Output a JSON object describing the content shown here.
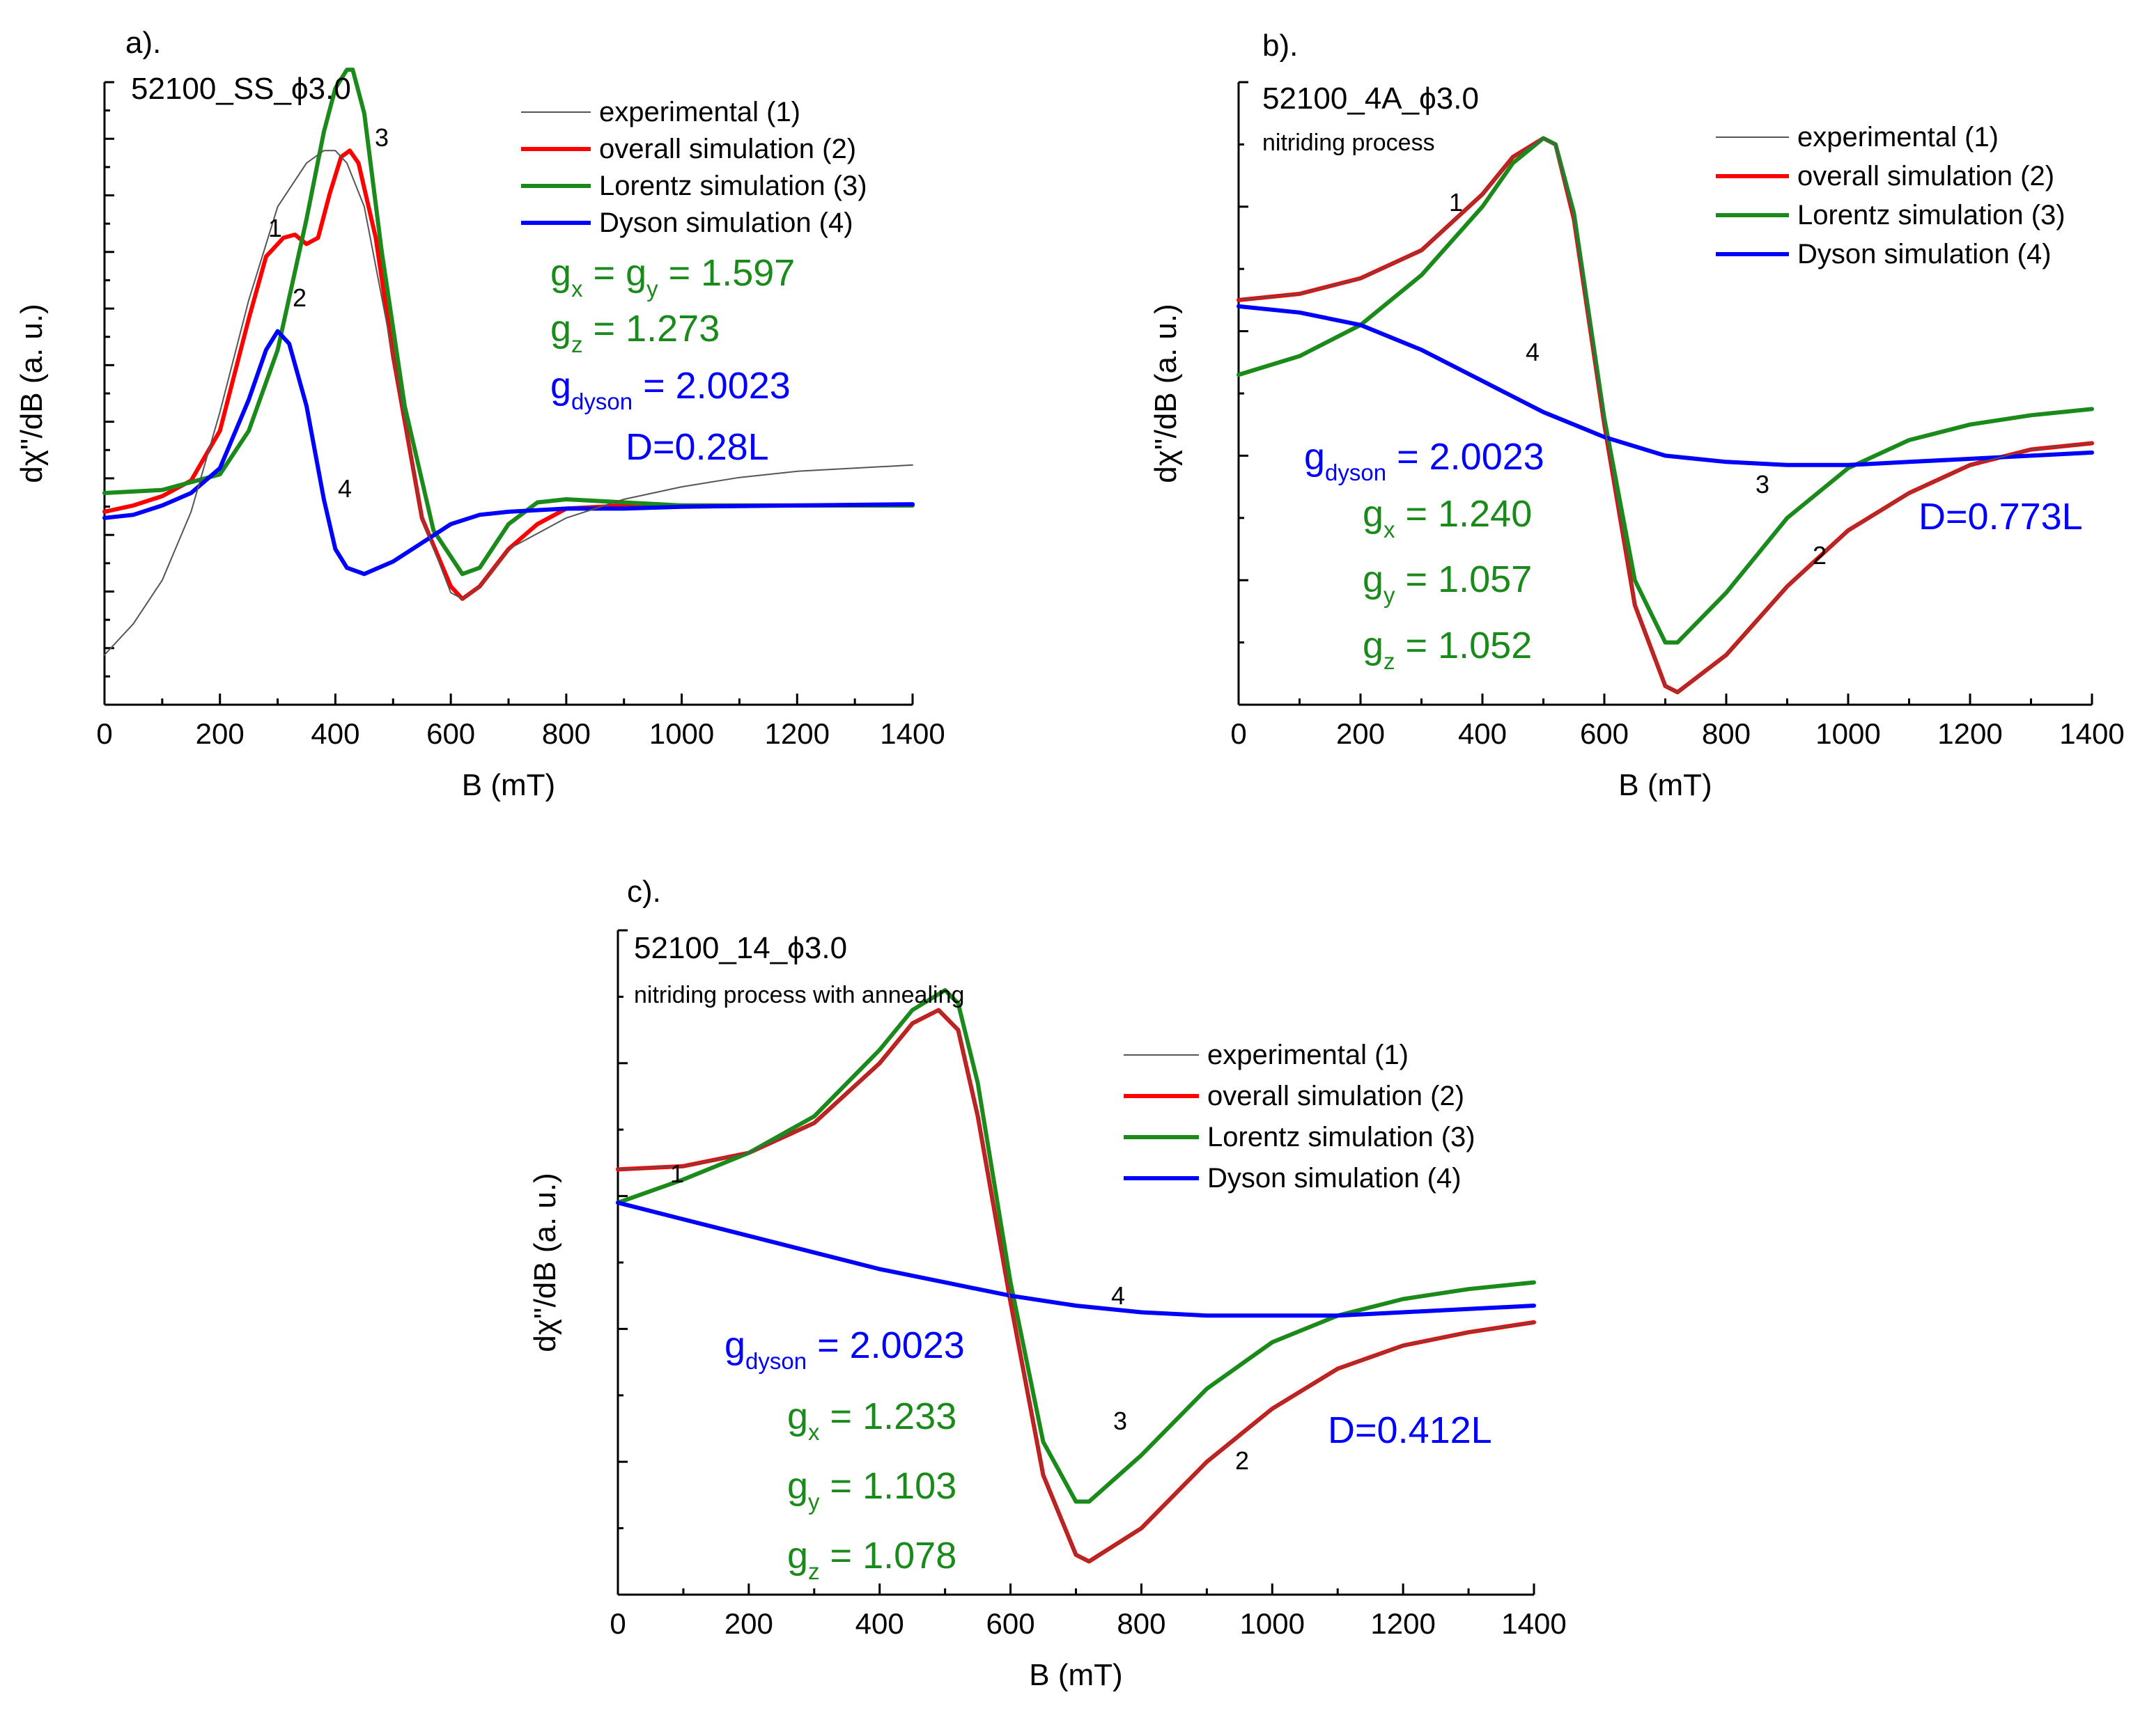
{
  "figure": {
    "panel_count": 3
  },
  "series_colors": {
    "experimental": "#555555",
    "overall": "#ff0000",
    "lorentz": "#1a8a1a",
    "dyson": "#0000ff"
  },
  "chart_data": [
    {
      "type": "line",
      "panel_label": "a).",
      "sample": "52100_SS_",
      "phi_symbol": "ϕ",
      "phi_value": "3.0",
      "process": "",
      "xlabel": "B (mT)",
      "ylabel": "dχ''/dB (a. u.)",
      "xlim": [
        0,
        1400
      ],
      "ylim": [
        0,
        1
      ],
      "x_ticks": [
        "0",
        "200",
        "400",
        "600",
        "800",
        "1000",
        "1200",
        "1400"
      ],
      "x_tick_values": [
        0,
        200,
        400,
        600,
        800,
        1000,
        1200,
        1400
      ],
      "legend_position": "top-right",
      "legend": [
        "experimental (1)",
        "overall simulation (2)",
        "Lorentz simulation (3)",
        "Dyson simulation (4)"
      ],
      "annotations": {
        "curve_numbers": [
          "1",
          "2",
          "3",
          "4"
        ],
        "g_lorentz": [
          {
            "label": "g",
            "sub": "x",
            "rest": " = g",
            "sub2": "y",
            "rest2": " = 1.597"
          },
          {
            "label": "g",
            "sub": "z",
            "rest": " = 1.273"
          }
        ],
        "g_dyson": {
          "label": "g",
          "sub": "dyson",
          "rest": " = 2.0023"
        },
        "dyson_fraction": "D=0.28L"
      },
      "series": [
        {
          "name": "experimental (1)",
          "key": "experimental",
          "x": [
            0,
            50,
            100,
            150,
            200,
            250,
            300,
            350,
            380,
            400,
            420,
            450,
            500,
            550,
            600,
            620,
            650,
            700,
            800,
            900,
            1000,
            1100,
            1200,
            1300,
            1400
          ],
          "y": [
            0.08,
            0.13,
            0.2,
            0.31,
            0.47,
            0.65,
            0.8,
            0.87,
            0.89,
            0.89,
            0.87,
            0.8,
            0.56,
            0.3,
            0.18,
            0.17,
            0.19,
            0.25,
            0.3,
            0.33,
            0.35,
            0.365,
            0.375,
            0.38,
            0.385
          ]
        },
        {
          "name": "overall simulation (2)",
          "key": "overall",
          "x": [
            0,
            50,
            100,
            150,
            200,
            250,
            280,
            310,
            330,
            350,
            370,
            390,
            410,
            425,
            440,
            470,
            500,
            550,
            600,
            620,
            650,
            700,
            750,
            800,
            900,
            1000,
            1200,
            1400
          ],
          "y": [
            0.31,
            0.32,
            0.335,
            0.36,
            0.44,
            0.62,
            0.72,
            0.75,
            0.755,
            0.74,
            0.75,
            0.82,
            0.88,
            0.89,
            0.87,
            0.75,
            0.56,
            0.3,
            0.19,
            0.17,
            0.19,
            0.25,
            0.29,
            0.315,
            0.32,
            0.32,
            0.32,
            0.32
          ]
        },
        {
          "name": "Lorentz simulation (3)",
          "key": "lorentz",
          "x": [
            0,
            100,
            200,
            250,
            300,
            350,
            380,
            400,
            420,
            430,
            450,
            480,
            520,
            570,
            620,
            650,
            700,
            750,
            800,
            900,
            1000,
            1200,
            1400
          ],
          "y": [
            0.34,
            0.345,
            0.37,
            0.44,
            0.57,
            0.78,
            0.92,
            0.99,
            1.02,
            1.02,
            0.95,
            0.73,
            0.48,
            0.28,
            0.21,
            0.22,
            0.29,
            0.325,
            0.33,
            0.325,
            0.32,
            0.32,
            0.32
          ]
        },
        {
          "name": "Dyson simulation (4)",
          "key": "dyson",
          "x": [
            0,
            50,
            100,
            150,
            200,
            250,
            280,
            300,
            320,
            350,
            380,
            400,
            420,
            450,
            500,
            550,
            600,
            650,
            700,
            800,
            900,
            1000,
            1200,
            1400
          ],
          "y": [
            0.3,
            0.305,
            0.32,
            0.34,
            0.38,
            0.49,
            0.57,
            0.6,
            0.58,
            0.48,
            0.33,
            0.25,
            0.22,
            0.21,
            0.23,
            0.26,
            0.29,
            0.305,
            0.31,
            0.315,
            0.315,
            0.318,
            0.32,
            0.322
          ]
        }
      ]
    },
    {
      "type": "line",
      "panel_label": "b).",
      "sample": "52100_4A_",
      "phi_symbol": "ϕ",
      "phi_value": "3.0",
      "process": "nitriding process",
      "xlabel": "B (mT)",
      "ylabel": "dχ''/dB (a. u.)",
      "xlim": [
        0,
        1400
      ],
      "ylim": [
        0,
        1
      ],
      "x_ticks": [
        "0",
        "200",
        "400",
        "600",
        "800",
        "1000",
        "1200",
        "1400"
      ],
      "x_tick_values": [
        0,
        200,
        400,
        600,
        800,
        1000,
        1200,
        1400
      ],
      "legend_position": "top-right",
      "legend": [
        "experimental (1)",
        "overall simulation (2)",
        "Lorentz simulation (3)",
        "Dyson simulation (4)"
      ],
      "annotations": {
        "curve_numbers": [
          "1",
          "4",
          "3",
          "2"
        ],
        "g_lorentz": [
          {
            "label": "g",
            "sub": "x",
            "rest": " = 1.240"
          },
          {
            "label": "g",
            "sub": "y",
            "rest": " = 1.057"
          },
          {
            "label": "g",
            "sub": "z",
            "rest": " = 1.052"
          }
        ],
        "g_dyson": {
          "label": "g",
          "sub": "dyson",
          "rest": " = 2.0023"
        },
        "dyson_fraction": "D=0.773L"
      },
      "series": [
        {
          "name": "experimental (1)",
          "key": "experimental",
          "x": [
            0,
            100,
            200,
            300,
            400,
            450,
            500,
            520,
            550,
            600,
            650,
            700,
            720,
            800,
            900,
            1000,
            1100,
            1200,
            1300,
            1400
          ],
          "y": [
            0.65,
            0.66,
            0.685,
            0.73,
            0.82,
            0.88,
            0.91,
            0.9,
            0.78,
            0.45,
            0.16,
            0.03,
            0.02,
            0.08,
            0.19,
            0.28,
            0.34,
            0.385,
            0.41,
            0.42
          ]
        },
        {
          "name": "overall simulation (2)",
          "key": "overall",
          "x": [
            0,
            100,
            200,
            300,
            400,
            450,
            500,
            520,
            550,
            600,
            650,
            700,
            720,
            800,
            900,
            1000,
            1100,
            1200,
            1300,
            1400
          ],
          "y": [
            0.65,
            0.66,
            0.685,
            0.73,
            0.82,
            0.88,
            0.91,
            0.9,
            0.78,
            0.45,
            0.16,
            0.03,
            0.02,
            0.08,
            0.19,
            0.28,
            0.34,
            0.385,
            0.41,
            0.42
          ]
        },
        {
          "name": "Lorentz simulation (3)",
          "key": "lorentz",
          "x": [
            0,
            100,
            200,
            300,
            400,
            450,
            500,
            520,
            550,
            600,
            650,
            700,
            720,
            800,
            900,
            1000,
            1100,
            1200,
            1300,
            1400
          ],
          "y": [
            0.53,
            0.56,
            0.61,
            0.69,
            0.8,
            0.87,
            0.91,
            0.9,
            0.79,
            0.46,
            0.2,
            0.1,
            0.1,
            0.18,
            0.3,
            0.38,
            0.425,
            0.45,
            0.465,
            0.475
          ]
        },
        {
          "name": "Dyson simulation (4)",
          "key": "dyson",
          "x": [
            0,
            100,
            200,
            300,
            400,
            500,
            600,
            700,
            800,
            900,
            1000,
            1100,
            1200,
            1300,
            1400
          ],
          "y": [
            0.64,
            0.63,
            0.61,
            0.57,
            0.52,
            0.47,
            0.43,
            0.4,
            0.39,
            0.385,
            0.385,
            0.39,
            0.395,
            0.4,
            0.405
          ]
        }
      ]
    },
    {
      "type": "line",
      "panel_label": "c).",
      "sample": "52100_14_",
      "phi_symbol": "ϕ",
      "phi_value": "3.0",
      "process": "nitriding process with annealing",
      "xlabel": "B (mT)",
      "ylabel": "dχ''/dB (a. u.)",
      "xlim": [
        0,
        1400
      ],
      "ylim": [
        0,
        1
      ],
      "x_ticks": [
        "0",
        "200",
        "400",
        "600",
        "800",
        "1000",
        "1200",
        "1400"
      ],
      "x_tick_values": [
        0,
        200,
        400,
        600,
        800,
        1000,
        1200,
        1400
      ],
      "legend_position": "top-right",
      "legend": [
        "experimental (1)",
        "overall simulation (2)",
        "Lorentz simulation (3)",
        "Dyson simulation (4)"
      ],
      "annotations": {
        "curve_numbers": [
          "1",
          "4",
          "3",
          "2"
        ],
        "g_lorentz": [
          {
            "label": "g",
            "sub": "x",
            "rest": " = 1.233"
          },
          {
            "label": "g",
            "sub": "y",
            "rest": " = 1.103"
          },
          {
            "label": "g",
            "sub": "z",
            "rest": " = 1.078"
          }
        ],
        "g_dyson": {
          "label": "g",
          "sub": "dyson",
          "rest": " = 2.0023"
        },
        "dyson_fraction": "D=0.412L"
      },
      "series": [
        {
          "name": "experimental (1)",
          "key": "experimental",
          "x": [
            0,
            100,
            200,
            300,
            400,
            450,
            490,
            520,
            550,
            600,
            650,
            700,
            720,
            800,
            900,
            1000,
            1100,
            1200,
            1300,
            1400
          ],
          "y": [
            0.64,
            0.645,
            0.665,
            0.71,
            0.8,
            0.86,
            0.88,
            0.85,
            0.72,
            0.44,
            0.18,
            0.06,
            0.05,
            0.1,
            0.2,
            0.28,
            0.34,
            0.375,
            0.395,
            0.41
          ]
        },
        {
          "name": "overall simulation (2)",
          "key": "overall",
          "x": [
            0,
            100,
            200,
            300,
            400,
            450,
            490,
            520,
            550,
            600,
            650,
            700,
            720,
            800,
            900,
            1000,
            1100,
            1200,
            1300,
            1400
          ],
          "y": [
            0.64,
            0.645,
            0.665,
            0.71,
            0.8,
            0.86,
            0.88,
            0.85,
            0.72,
            0.44,
            0.18,
            0.06,
            0.05,
            0.1,
            0.2,
            0.28,
            0.34,
            0.375,
            0.395,
            0.41
          ]
        },
        {
          "name": "Lorentz simulation (3)",
          "key": "lorentz",
          "x": [
            0,
            100,
            200,
            300,
            400,
            450,
            500,
            520,
            550,
            600,
            650,
            700,
            720,
            800,
            900,
            1000,
            1100,
            1200,
            1300,
            1400
          ],
          "y": [
            0.59,
            0.625,
            0.665,
            0.72,
            0.82,
            0.88,
            0.91,
            0.89,
            0.77,
            0.47,
            0.23,
            0.14,
            0.14,
            0.21,
            0.31,
            0.38,
            0.42,
            0.445,
            0.46,
            0.47
          ]
        },
        {
          "name": "Dyson simulation (4)",
          "key": "dyson",
          "x": [
            0,
            100,
            200,
            300,
            400,
            500,
            600,
            700,
            800,
            900,
            1000,
            1100,
            1200,
            1300,
            1400
          ],
          "y": [
            0.59,
            0.565,
            0.54,
            0.515,
            0.49,
            0.47,
            0.45,
            0.435,
            0.425,
            0.42,
            0.42,
            0.42,
            0.425,
            0.43,
            0.435
          ]
        }
      ]
    }
  ]
}
